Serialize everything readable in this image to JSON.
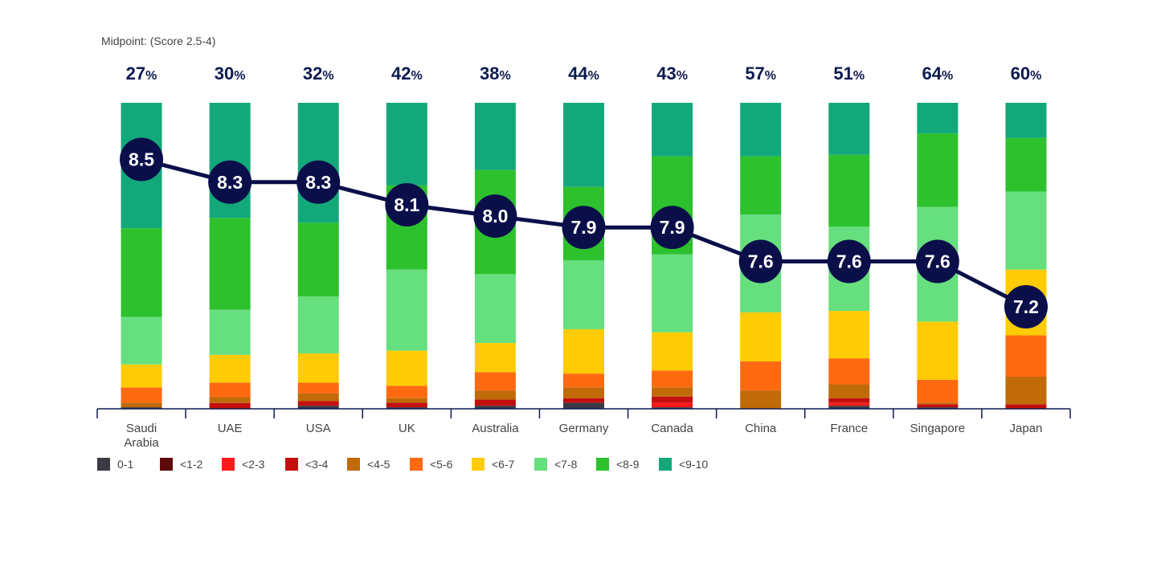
{
  "midpoint_caption": "Midpoint: (Score 2.5-4)",
  "chart_data": {
    "type": "bar",
    "stacked": true,
    "percent": true,
    "categories": [
      "Saudi Arabia",
      "UAE",
      "USA",
      "UK",
      "Australia",
      "Germany",
      "Canada",
      "China",
      "France",
      "Singapore",
      "Japan"
    ],
    "category_lines": [
      [
        "Saudi",
        "Arabia"
      ],
      [
        "UAE"
      ],
      [
        "USA"
      ],
      [
        "UK"
      ],
      [
        "Australia"
      ],
      [
        "Germany"
      ],
      [
        "Canada"
      ],
      [
        "China"
      ],
      [
        "France"
      ],
      [
        "Singapore"
      ],
      [
        "Japan"
      ]
    ],
    "midpoint_percent": [
      27,
      30,
      32,
      42,
      38,
      44,
      43,
      57,
      51,
      64,
      60
    ],
    "pct_suffix": "%",
    "average_score": [
      8.5,
      8.3,
      8.3,
      8.1,
      8.0,
      7.9,
      7.9,
      7.6,
      7.6,
      7.6,
      7.2
    ],
    "average_labels": [
      "8.5",
      "8.3",
      "8.3",
      "8.1",
      "8.0",
      "7.9",
      "7.9",
      "7.6",
      "7.6",
      "7.6",
      "7.2"
    ],
    "series": [
      {
        "name": "0-1",
        "color": "#3a3b45",
        "values": [
          0.5,
          0,
          1.0,
          0.5,
          1.0,
          2.0,
          0.5,
          0,
          1.0,
          0.5,
          0
        ]
      },
      {
        "name": "<1-2",
        "color": "#5e0a0a",
        "values": [
          0,
          0,
          0,
          0,
          0,
          0,
          0,
          0,
          0,
          0,
          0
        ]
      },
      {
        "name": "<2-3",
        "color": "#ff1a1a",
        "values": [
          0,
          0,
          0,
          0,
          0,
          0,
          1.5,
          0,
          1.0,
          0,
          0
        ]
      },
      {
        "name": "<3-4",
        "color": "#c40f0f",
        "values": [
          0,
          2.0,
          1.5,
          1.5,
          2.0,
          1.5,
          2.0,
          0,
          1.5,
          1.0,
          1.5
        ]
      },
      {
        "name": "<4-5",
        "color": "#c06a08",
        "values": [
          1.5,
          2.0,
          2.5,
          1.5,
          3.0,
          3.5,
          3.0,
          6.0,
          4.5,
          0.5,
          9.0
        ]
      },
      {
        "name": "<5-6",
        "color": "#ff6a10",
        "values": [
          5.0,
          5.0,
          3.5,
          4.0,
          6.0,
          4.5,
          5.5,
          9.5,
          8.5,
          7.5,
          13.5
        ]
      },
      {
        "name": "<6-7",
        "color": "#ffcb05",
        "values": [
          7.5,
          9.5,
          9.5,
          11.5,
          9.5,
          14.5,
          12.5,
          16.0,
          15.5,
          19.0,
          21.5
        ]
      },
      {
        "name": "<7-8",
        "color": "#66df7e",
        "values": [
          15.5,
          15.5,
          18.5,
          26.5,
          22.5,
          22.5,
          25.5,
          32.0,
          27.5,
          37.5,
          25.5
        ]
      },
      {
        "name": "<8-9",
        "color": "#2dc12d",
        "values": [
          29.0,
          31.5,
          24.0,
          27.5,
          34.0,
          24.0,
          32.0,
          19.0,
          23.5,
          24.0,
          17.5
        ]
      },
      {
        "name": "<9-10",
        "color": "#13a87a",
        "values": [
          41.0,
          39.5,
          39.0,
          27.0,
          22.0,
          27.5,
          17.5,
          17.5,
          17.0,
          10.0,
          11.5
        ]
      }
    ],
    "ylim": [
      0,
      100
    ],
    "avg_scale": [
      6.3,
      9.0
    ],
    "legend_placement": "bottom-left",
    "grid": false
  }
}
